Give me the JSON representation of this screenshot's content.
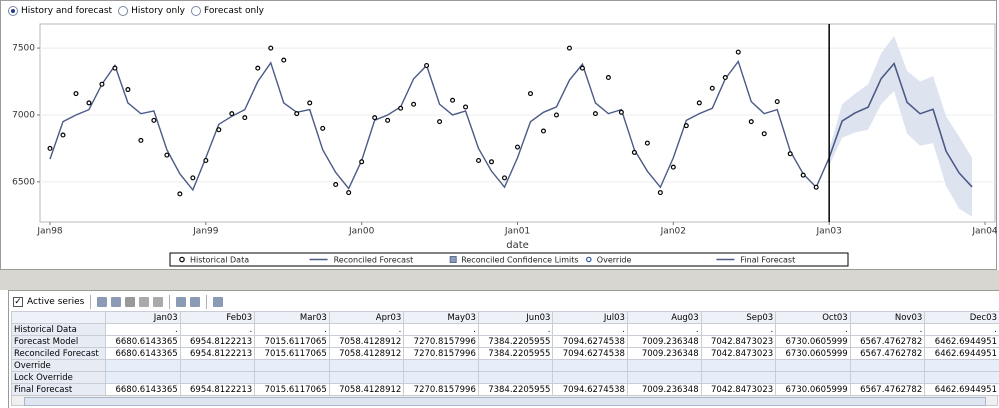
{
  "radio_options": [
    {
      "label": "History and forecast",
      "selected": true
    },
    {
      "label": "History only",
      "selected": false
    },
    {
      "label": "Forecast only",
      "selected": false
    }
  ],
  "chart_data": {
    "type": "line",
    "x_label": "date",
    "x": [
      "Jan98",
      "Feb98",
      "Mar98",
      "Apr98",
      "May98",
      "Jun98",
      "Jul98",
      "Aug98",
      "Sep98",
      "Oct98",
      "Nov98",
      "Dec98",
      "Jan99",
      "Feb99",
      "Mar99",
      "Apr99",
      "May99",
      "Jun99",
      "Jul99",
      "Aug99",
      "Sep99",
      "Oct99",
      "Nov99",
      "Dec99",
      "Jan00",
      "Feb00",
      "Mar00",
      "Apr00",
      "May00",
      "Jun00",
      "Jul00",
      "Aug00",
      "Sep00",
      "Oct00",
      "Nov00",
      "Dec00",
      "Jan01",
      "Feb01",
      "Mar01",
      "Apr01",
      "May01",
      "Jun01",
      "Jul01",
      "Aug01",
      "Sep01",
      "Oct01",
      "Nov01",
      "Dec01",
      "Jan02",
      "Feb02",
      "Mar02",
      "Apr02",
      "May02",
      "Jun02",
      "Jul02",
      "Aug02",
      "Sep02",
      "Oct02",
      "Nov02",
      "Dec02",
      "Jan03",
      "Feb03",
      "Mar03",
      "Apr03",
      "May03",
      "Jun03",
      "Jul03",
      "Aug03",
      "Sep03",
      "Oct03",
      "Nov03",
      "Dec03"
    ],
    "xticks": [
      "Jan98",
      "Jan99",
      "Jan00",
      "Jan01",
      "Jan02",
      "Jan03",
      "Jan04"
    ],
    "ylim": [
      6200,
      7680
    ],
    "yticks": [
      6500,
      7000,
      7500
    ],
    "grid": true,
    "series": [
      {
        "name": "Historical Data",
        "type": "scatter",
        "color": "#000000",
        "values": [
          6750,
          6850,
          7160,
          7090,
          7230,
          7350,
          7190,
          6810,
          6960,
          6700,
          6410,
          6530,
          6660,
          6890,
          7010,
          6980,
          7350,
          7500,
          7410,
          7010,
          7090,
          6900,
          6480,
          6420,
          6650,
          6980,
          6960,
          7050,
          7080,
          7370,
          6950,
          7110,
          7060,
          6660,
          6650,
          6530,
          6760,
          7160,
          6880,
          7000,
          7500,
          7350,
          7010,
          7280,
          7020,
          6720,
          6790,
          6420,
          6610,
          6920,
          7090,
          7200,
          7280,
          7470,
          6950,
          6860,
          7100,
          6710,
          6550,
          6460,
          null,
          null,
          null,
          null,
          null,
          null,
          null,
          null,
          null,
          null,
          null,
          null
        ]
      },
      {
        "name": "Reconciled Forecast",
        "type": "line",
        "color": "#4b5a86",
        "values": [
          6670,
          6950,
          7000,
          7040,
          7230,
          7370,
          7090,
          7010,
          7030,
          6740,
          6560,
          6440,
          6680,
          6930,
          6990,
          7040,
          7250,
          7390,
          7090,
          7020,
          7040,
          6740,
          6570,
          6450,
          6660,
          6960,
          7000,
          7060,
          7270,
          7370,
          7080,
          7000,
          7030,
          6750,
          6580,
          6460,
          6680,
          6950,
          7020,
          7060,
          7260,
          7380,
          7090,
          7010,
          7040,
          6740,
          6580,
          6460,
          6680,
          6960,
          7010,
          7050,
          7270,
          7400,
          7100,
          7010,
          7040,
          6730,
          6560,
          6460,
          6680.6143365,
          6954.8122213,
          7015.6117065,
          7058.4128912,
          7270.8157996,
          7384.2205955,
          7094.6274538,
          7009.236348,
          7042.8473023,
          6730.0605999,
          6567.4762782,
          6462.6944951
        ]
      },
      {
        "name": "Reconciled Confidence Limits",
        "type": "band",
        "color": "#dde3ef",
        "lower": [
          null,
          null,
          null,
          null,
          null,
          null,
          null,
          null,
          null,
          null,
          null,
          null,
          null,
          null,
          null,
          null,
          null,
          null,
          null,
          null,
          null,
          null,
          null,
          null,
          null,
          null,
          null,
          null,
          null,
          null,
          null,
          null,
          null,
          null,
          null,
          null,
          null,
          null,
          null,
          null,
          null,
          null,
          null,
          null,
          null,
          null,
          null,
          null,
          null,
          null,
          null,
          null,
          null,
          null,
          null,
          null,
          null,
          null,
          null,
          null,
          6620,
          6830,
          6870,
          6890,
          7080,
          7180,
          6860,
          6770,
          6790,
          6470,
          6300,
          6240
        ],
        "upper": [
          null,
          null,
          null,
          null,
          null,
          null,
          null,
          null,
          null,
          null,
          null,
          null,
          null,
          null,
          null,
          null,
          null,
          null,
          null,
          null,
          null,
          null,
          null,
          null,
          null,
          null,
          null,
          null,
          null,
          null,
          null,
          null,
          null,
          null,
          null,
          null,
          null,
          null,
          null,
          null,
          null,
          null,
          null,
          null,
          null,
          null,
          null,
          null,
          null,
          null,
          null,
          null,
          null,
          null,
          null,
          null,
          null,
          null,
          null,
          null,
          6740,
          7080,
          7160,
          7230,
          7460,
          7590,
          7330,
          7250,
          7290,
          6990,
          6840,
          6680
        ]
      },
      {
        "name": "Override",
        "type": "scatter",
        "color": "#3355aa",
        "values": [
          null,
          null,
          null,
          null,
          null,
          null,
          null,
          null,
          null,
          null,
          null,
          null,
          null,
          null,
          null,
          null,
          null,
          null,
          null,
          null,
          null,
          null,
          null,
          null,
          null,
          null,
          null,
          null,
          null,
          null,
          null,
          null,
          null,
          null,
          null,
          null,
          null,
          null,
          null,
          null,
          null,
          null,
          null,
          null,
          null,
          null,
          null,
          null,
          null,
          null,
          null,
          null,
          null,
          null,
          null,
          null,
          null,
          null,
          null,
          null,
          null,
          null,
          null,
          null,
          null,
          null,
          null,
          null,
          null,
          null,
          null,
          null
        ]
      },
      {
        "name": "Final Forecast",
        "type": "line",
        "color": "#4b5a86",
        "values": [
          null,
          null,
          null,
          null,
          null,
          null,
          null,
          null,
          null,
          null,
          null,
          null,
          null,
          null,
          null,
          null,
          null,
          null,
          null,
          null,
          null,
          null,
          null,
          null,
          null,
          null,
          null,
          null,
          null,
          null,
          null,
          null,
          null,
          null,
          null,
          null,
          null,
          null,
          null,
          null,
          null,
          null,
          null,
          null,
          null,
          null,
          null,
          null,
          null,
          null,
          null,
          null,
          null,
          null,
          null,
          null,
          null,
          null,
          null,
          null,
          6680.6143365,
          6954.8122213,
          7015.6117065,
          7058.4128912,
          7270.8157996,
          7384.2205955,
          7094.6274538,
          7009.236348,
          7042.8473023,
          6730.0605999,
          6567.4762782,
          6462.6944951
        ]
      }
    ]
  },
  "toolbar": {
    "checkbox_label": "Active series"
  },
  "table": {
    "columns": [
      "Jan03",
      "Feb03",
      "Mar03",
      "Apr03",
      "May03",
      "Jun03",
      "Jul03",
      "Aug03",
      "Sep03",
      "Oct03",
      "Nov03",
      "Dec03"
    ],
    "rows": [
      {
        "label": "Historical Data",
        "cells": [
          ".",
          ".",
          ".",
          ".",
          ".",
          ".",
          ".",
          ".",
          ".",
          ".",
          ".",
          "."
        ]
      },
      {
        "label": "Forecast Model",
        "cells": [
          6680.6143365,
          6954.8122213,
          7015.6117065,
          7058.4128912,
          7270.8157996,
          7384.2205955,
          7094.6274538,
          7009.236348,
          7042.8473023,
          6730.0605999,
          6567.4762782,
          6462.6944951
        ]
      },
      {
        "label": "Reconciled Forecast",
        "cells": [
          6680.6143365,
          6954.8122213,
          7015.6117065,
          7058.4128912,
          7270.8157996,
          7384.2205955,
          7094.6274538,
          7009.236348,
          7042.8473023,
          6730.0605999,
          6567.4762782,
          6462.6944951
        ]
      },
      {
        "label": "Override"
      },
      {
        "label": "Lock Override"
      },
      {
        "label": "Final Forecast",
        "cells": [
          6680.6143365,
          6954.8122213,
          7015.6117065,
          7058.4128912,
          7270.8157996,
          7384.2205955,
          7094.6274538,
          7009.236348,
          7042.8473023,
          6730.0605999,
          6567.4762782,
          6462.6944951
        ]
      }
    ]
  }
}
